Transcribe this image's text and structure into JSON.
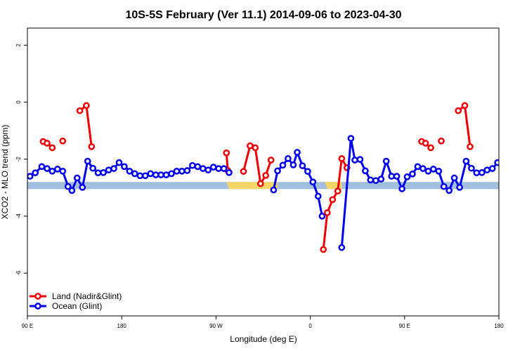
{
  "chart_data": {
    "type": "line",
    "title": "10S-5S February (Ver 11.1)   2014-09-06 to 2023-04-30",
    "xlabel": "Longitude (deg E)",
    "ylabel": "XCO2 - MLO trend (ppm)",
    "xlim": [
      0,
      360
    ],
    "ylim": [
      -7.5,
      2.6
    ],
    "x_axis_note": "Longitude runs 90 E -> 180 -> 90 W -> 0 -> 90 E -> 180 (x expressed as degrees east of 90 E)",
    "x_ticks": [
      {
        "value": 0,
        "label": "90 E"
      },
      {
        "value": 72,
        "label": "180"
      },
      {
        "value": 144,
        "label": "90 W"
      },
      {
        "value": 216,
        "label": "0"
      },
      {
        "value": 288,
        "label": "90 E"
      },
      {
        "value": 360,
        "label": "180"
      }
    ],
    "y_ticks": [
      {
        "value": 2,
        "label": "2"
      },
      {
        "value": 0,
        "label": "0"
      },
      {
        "value": -2,
        "label": "-2"
      },
      {
        "value": -4,
        "label": "-4"
      },
      {
        "value": -6,
        "label": "-6"
      }
    ],
    "grid": false,
    "legend_position": "bottom-left",
    "series": [
      {
        "name": "Land (Nadir&Glint)",
        "color": "#ee0000",
        "segments": [
          [
            [
              12,
              -1.38
            ],
            [
              15,
              -1.44
            ],
            [
              19,
              -1.6
            ]
          ],
          [
            [
              27,
              -1.36
            ]
          ],
          [
            [
              40,
              -0.3
            ],
            [
              45,
              -0.12
            ],
            [
              49,
              -1.56
            ]
          ],
          [
            [
              152,
              -1.78
            ],
            [
              153,
              -2.4
            ]
          ],
          [
            [
              165,
              -2.43
            ],
            [
              170,
              -1.53
            ],
            [
              174,
              -1.6
            ],
            [
              178,
              -2.86
            ],
            [
              182,
              -2.57
            ],
            [
              186,
              -2.03
            ]
          ],
          [
            [
              226,
              -5.17
            ],
            [
              229,
              -3.88
            ],
            [
              233,
              -3.42
            ],
            [
              237,
              -3.12
            ],
            [
              240,
              -1.98
            ],
            [
              244,
              -2.3
            ]
          ],
          [
            [
              301,
              -1.38
            ],
            [
              304,
              -1.44
            ],
            [
              308,
              -1.6
            ]
          ],
          [
            [
              316,
              -1.36
            ]
          ],
          [
            [
              329,
              -0.3
            ],
            [
              334,
              -0.12
            ],
            [
              338,
              -1.56
            ]
          ]
        ]
      },
      {
        "name": "Ocean (Glint)",
        "color": "#0000ee",
        "segments": [
          [
            [
              2,
              -2.6
            ],
            [
              6,
              -2.48
            ],
            [
              11,
              -2.26
            ],
            [
              15,
              -2.33
            ],
            [
              19,
              -2.42
            ],
            [
              23,
              -2.35
            ],
            [
              27,
              -2.42
            ],
            [
              31,
              -2.96
            ],
            [
              34,
              -3.1
            ],
            [
              38,
              -2.66
            ],
            [
              42,
              -2.99
            ],
            [
              46,
              -2.07
            ],
            [
              50,
              -2.32
            ],
            [
              54,
              -2.48
            ],
            [
              58,
              -2.47
            ],
            [
              62,
              -2.38
            ],
            [
              66,
              -2.33
            ],
            [
              70,
              -2.12
            ],
            [
              74,
              -2.26
            ],
            [
              78,
              -2.42
            ],
            [
              82,
              -2.51
            ],
            [
              86,
              -2.58
            ],
            [
              90,
              -2.58
            ],
            [
              94,
              -2.51
            ],
            [
              98,
              -2.55
            ],
            [
              102,
              -2.55
            ],
            [
              106,
              -2.55
            ],
            [
              110,
              -2.51
            ],
            [
              114,
              -2.42
            ],
            [
              118,
              -2.42
            ],
            [
              122,
              -2.4
            ],
            [
              126,
              -2.22
            ],
            [
              130,
              -2.26
            ],
            [
              134,
              -2.33
            ],
            [
              138,
              -2.38
            ],
            [
              142,
              -2.28
            ],
            [
              146,
              -2.33
            ],
            [
              150,
              -2.33
            ],
            [
              154,
              -2.47
            ]
          ],
          [
            [
              188,
              -3.08
            ],
            [
              191,
              -2.41
            ],
            [
              195,
              -2.21
            ],
            [
              199,
              -1.98
            ],
            [
              203,
              -2.2
            ],
            [
              206,
              -1.76
            ],
            [
              210,
              -2.23
            ],
            [
              214,
              -2.43
            ],
            [
              218,
              -2.8
            ],
            [
              222,
              -3.3
            ],
            [
              225,
              -4.0
            ]
          ],
          [
            [
              240,
              -5.1
            ],
            [
              247,
              -1.27
            ],
            [
              250,
              -2.03
            ],
            [
              254,
              -2.01
            ],
            [
              258,
              -2.41
            ],
            [
              262,
              -2.73
            ],
            [
              266,
              -2.75
            ],
            [
              270,
              -2.7
            ],
            [
              274,
              -2.07
            ],
            [
              278,
              -2.6
            ],
            [
              282,
              -2.6
            ],
            [
              286,
              -3.04
            ],
            [
              290,
              -2.62
            ],
            [
              294,
              -2.52
            ],
            [
              298,
              -2.26
            ],
            [
              302,
              -2.33
            ],
            [
              306,
              -2.42
            ],
            [
              310,
              -2.35
            ],
            [
              314,
              -2.42
            ],
            [
              318,
              -2.96
            ],
            [
              322,
              -3.1
            ],
            [
              326,
              -2.66
            ],
            [
              330,
              -2.99
            ],
            [
              335,
              -2.07
            ],
            [
              339,
              -2.32
            ],
            [
              343,
              -2.48
            ],
            [
              347,
              -2.47
            ],
            [
              351,
              -2.38
            ],
            [
              355,
              -2.33
            ],
            [
              359,
              -2.12
            ]
          ]
        ]
      }
    ],
    "map_strip": {
      "y_range": [
        -3.05,
        -2.8
      ],
      "ocean_color": "#a3bfe0",
      "land_color": "#f5d565",
      "land_spans": [
        [
          152,
          191
        ],
        [
          227,
          240
        ]
      ]
    }
  }
}
